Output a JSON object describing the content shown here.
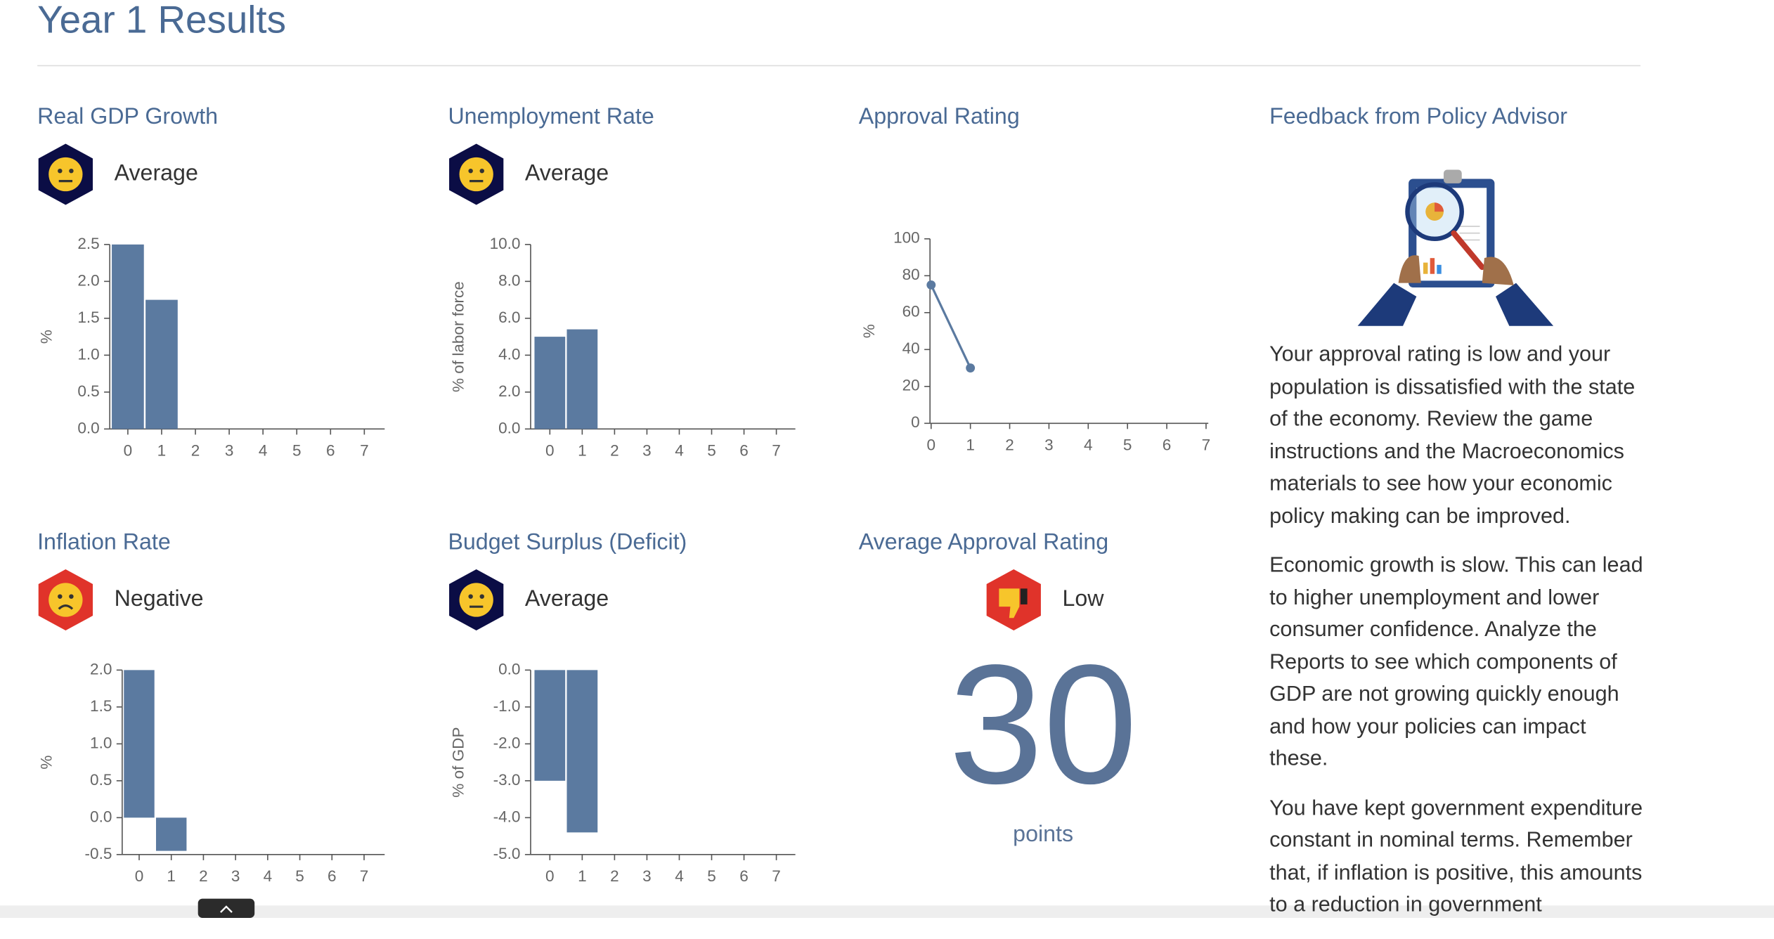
{
  "title": "Year 1 Results",
  "chart_data": [
    {
      "type": "bar",
      "title": "Real GDP Growth",
      "status": "Average",
      "ylabel": "%",
      "categories": [
        "0",
        "1",
        "2",
        "3",
        "4",
        "5",
        "6",
        "7"
      ],
      "values": [
        2.5,
        1.75,
        null,
        null,
        null,
        null,
        null,
        null
      ],
      "color": "#5b7aa0",
      "ylim": [
        0,
        2.5
      ],
      "yticks": [
        {
          "value": 0,
          "label": "0.0"
        },
        {
          "value": 0.5,
          "label": "0.5"
        },
        {
          "value": 1,
          "label": "1.0"
        },
        {
          "value": 1.5,
          "label": "1.5"
        },
        {
          "value": 2,
          "label": "2.0"
        },
        {
          "value": 2.5,
          "label": "2.5"
        }
      ]
    },
    {
      "type": "bar",
      "title": "Unemployment Rate",
      "status": "Average",
      "ylabel": "% of labor force",
      "categories": [
        "0",
        "1",
        "2",
        "3",
        "4",
        "5",
        "6",
        "7"
      ],
      "values": [
        5.0,
        5.4,
        null,
        null,
        null,
        null,
        null,
        null
      ],
      "color": "#5b7aa0",
      "ylim": [
        0,
        10
      ],
      "yticks": [
        {
          "value": 0,
          "label": "0.0"
        },
        {
          "value": 2,
          "label": "2.0"
        },
        {
          "value": 4,
          "label": "4.0"
        },
        {
          "value": 6,
          "label": "6.0"
        },
        {
          "value": 8,
          "label": "8.0"
        },
        {
          "value": 10,
          "label": "10.0"
        }
      ]
    },
    {
      "type": "line",
      "title": "Approval Rating",
      "ylabel": "%",
      "x": [
        0,
        1
      ],
      "values": [
        75,
        30
      ],
      "color": "#5b7aa0",
      "xlim": [
        0,
        7
      ],
      "xticks": [
        0,
        1,
        2,
        3,
        4,
        5,
        6,
        7
      ],
      "ylim": [
        0,
        100
      ],
      "yticks": [
        0,
        20,
        40,
        60,
        80,
        100
      ]
    },
    {
      "type": "bar",
      "title": "Inflation Rate",
      "status": "Negative",
      "ylabel": "%",
      "categories": [
        "0",
        "1",
        "2",
        "3",
        "4",
        "5",
        "6",
        "7"
      ],
      "values": [
        2.0,
        -0.45,
        null,
        null,
        null,
        null,
        null,
        null
      ],
      "color": "#5b7aa0",
      "ylim": [
        -0.5,
        2.0
      ],
      "yticks": [
        {
          "value": -0.5,
          "label": "-0.5"
        },
        {
          "value": 0,
          "label": "0.0"
        },
        {
          "value": 0.5,
          "label": "0.5"
        },
        {
          "value": 1,
          "label": "1.0"
        },
        {
          "value": 1.5,
          "label": "1.5"
        },
        {
          "value": 2,
          "label": "2.0"
        }
      ]
    },
    {
      "type": "bar",
      "title": "Budget Surplus (Deficit)",
      "status": "Average",
      "ylabel": "% of GDP",
      "categories": [
        "0",
        "1",
        "2",
        "3",
        "4",
        "5",
        "6",
        "7"
      ],
      "values": [
        -3.0,
        -4.4,
        null,
        null,
        null,
        null,
        null,
        null
      ],
      "color": "#5b7aa0",
      "ylim": [
        -5,
        0
      ],
      "yticks": [
        {
          "value": -5,
          "label": "-5.0"
        },
        {
          "value": -4,
          "label": "-4.0"
        },
        {
          "value": -3,
          "label": "-3.0"
        },
        {
          "value": -2,
          "label": "-2.0"
        },
        {
          "value": -1,
          "label": "-1.0"
        },
        {
          "value": 0,
          "label": "0.0"
        }
      ]
    }
  ],
  "average_approval": {
    "title": "Average Approval Rating",
    "status": "Low",
    "value": "30",
    "unit": "points"
  },
  "feedback": {
    "title": "Feedback from Policy Advisor",
    "paragraphs": [
      "Your approval rating is low and your population is dissatisfied with the state of the economy. Review the game instructions and the Macroeconomics materials to see how your economic policy making can be improved.",
      "Economic growth is slow. This can lead to higher unemployment and lower consumer confidence. Analyze the Reports to see which components of GDP are not growing quickly enough and how your policies can impact these.",
      "You have kept government expenditure constant in nominal terms. Remember that, if inflation is positive, this amounts to a reduction in government"
    ]
  }
}
